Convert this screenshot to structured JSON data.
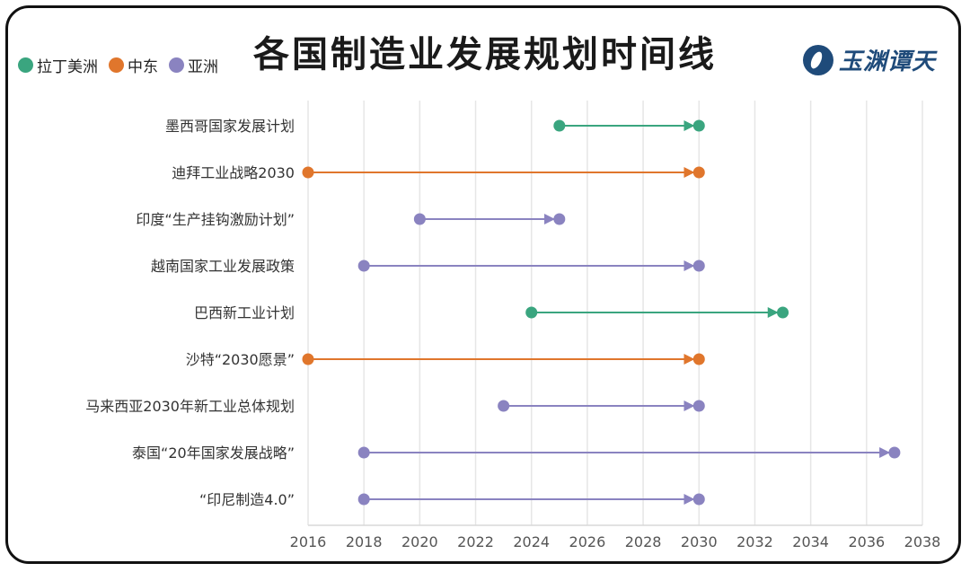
{
  "chart_data": {
    "type": "dumbbell",
    "title": "各国制造业发展规划时间线",
    "xlim": [
      2016,
      2038
    ],
    "xticks": [
      2016,
      2018,
      2020,
      2022,
      2024,
      2026,
      2028,
      2030,
      2032,
      2034,
      2036,
      2038
    ],
    "grid": true,
    "legend": [
      {
        "name": "拉丁美洲",
        "color": "#3aa57f"
      },
      {
        "name": "中东",
        "color": "#e0762c"
      },
      {
        "name": "亚洲",
        "color": "#8a83c0"
      }
    ],
    "plans": [
      {
        "name": "墨西哥国家发展计划",
        "region": "拉丁美洲",
        "start": 2025,
        "end": 2030
      },
      {
        "name": "迪拜工业战略2030",
        "region": "中东",
        "start": 2016,
        "end": 2030
      },
      {
        "name": "印度“生产挂钩激励计划”",
        "region": "亚洲",
        "start": 2020,
        "end": 2025
      },
      {
        "name": "越南国家工业发展政策",
        "region": "亚洲",
        "start": 2018,
        "end": 2030
      },
      {
        "name": "巴西新工业计划",
        "region": "拉丁美洲",
        "start": 2024,
        "end": 2033
      },
      {
        "name": "沙特“2030愿景”",
        "region": "中东",
        "start": 2016,
        "end": 2030
      },
      {
        "name": "马来西亚2030年新工业总体规划",
        "region": "亚洲",
        "start": 2023,
        "end": 2030
      },
      {
        "name": "泰国“20年国家发展战略”",
        "region": "亚洲",
        "start": 2018,
        "end": 2037
      },
      {
        "name": "“印尼制造4.0”",
        "region": "亚洲",
        "start": 2018,
        "end": 2030
      }
    ]
  },
  "legend_items": [
    {
      "label": "拉丁美洲",
      "color": "#3aa57f"
    },
    {
      "label": "中东",
      "color": "#e0762c"
    },
    {
      "label": "亚洲",
      "color": "#8a83c0"
    }
  ],
  "brand": {
    "name": "玉渊谭天"
  }
}
